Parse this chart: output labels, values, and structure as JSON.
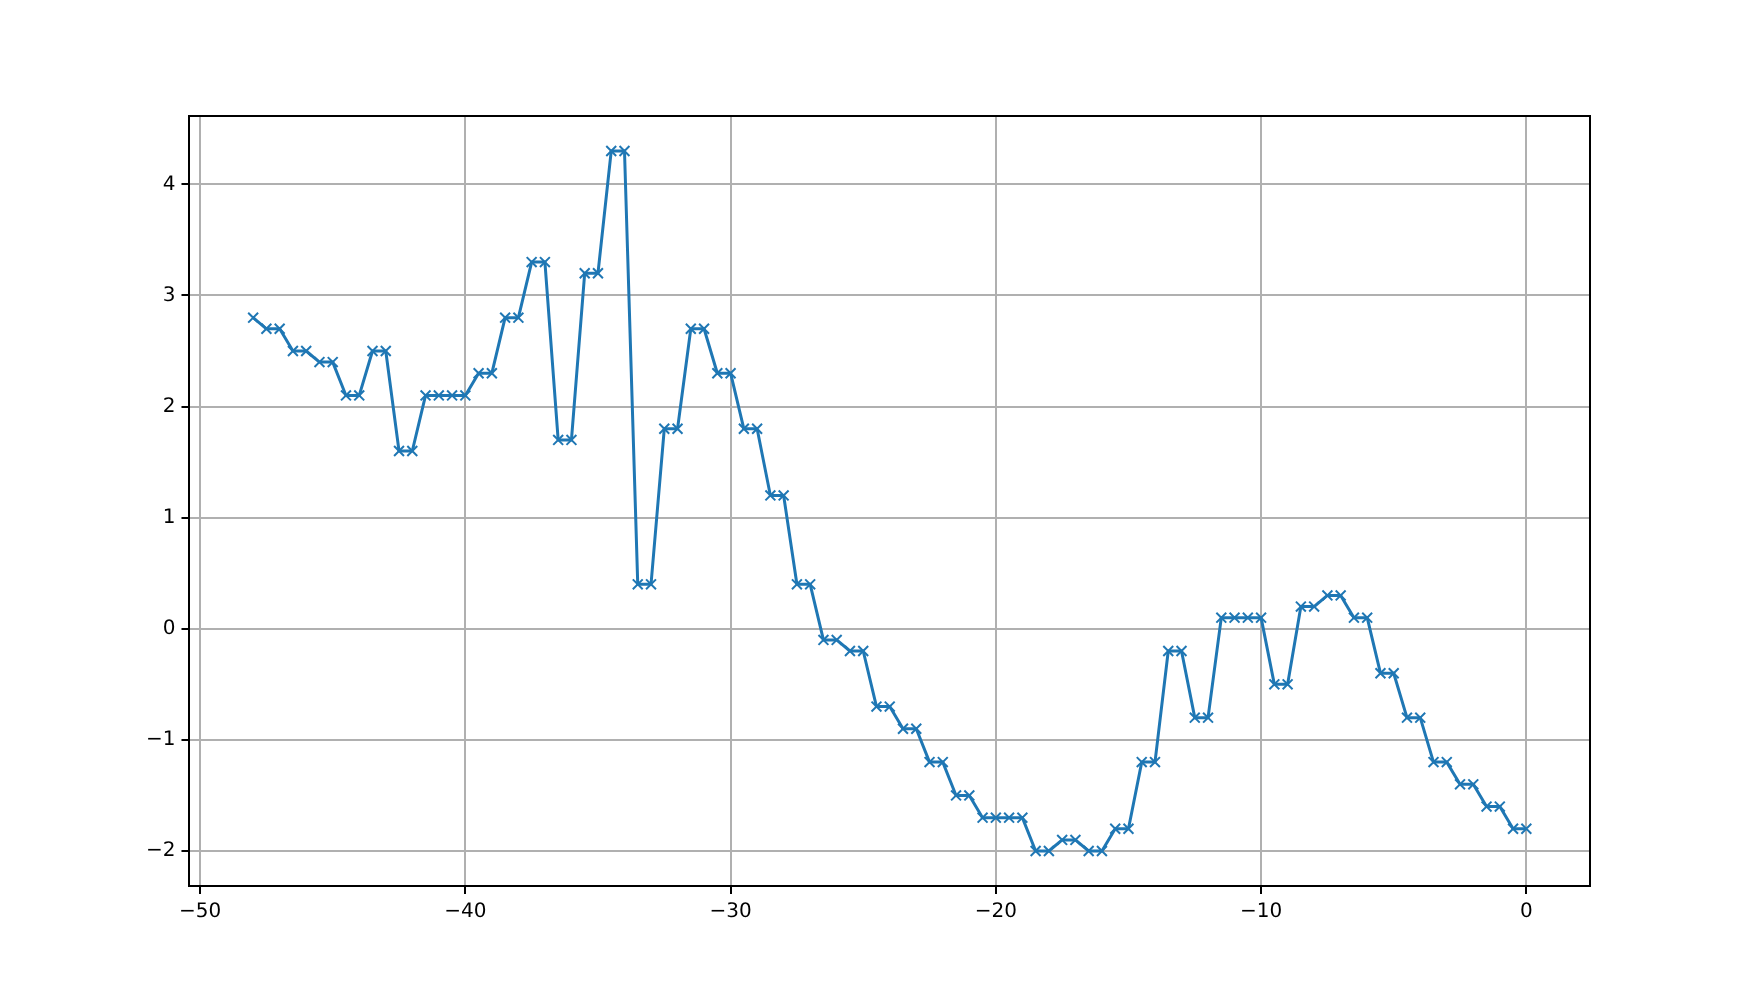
{
  "chart_data": {
    "type": "line",
    "marker": "cross",
    "grid": true,
    "legend": false,
    "xlim": [
      -50.4,
      2.4
    ],
    "ylim": [
      -2.315,
      4.615
    ],
    "xticks": [
      {
        "value": -50,
        "label": "−50"
      },
      {
        "value": -40,
        "label": "−40"
      },
      {
        "value": -30,
        "label": "−30"
      },
      {
        "value": -20,
        "label": "−20"
      },
      {
        "value": -10,
        "label": "−10"
      },
      0
    ],
    "yticks": [
      {
        "value": -2,
        "label": "−2"
      },
      {
        "value": -1,
        "label": "−1"
      },
      0,
      1,
      2,
      3,
      4
    ],
    "x": [
      -48,
      -47.5,
      -47,
      -46.5,
      -46,
      -45.5,
      -45,
      -44.5,
      -44,
      -43.5,
      -43,
      -42.5,
      -42,
      -41.5,
      -41,
      -40.5,
      -40,
      -39.5,
      -39,
      -38.5,
      -38,
      -37.5,
      -37,
      -36.5,
      -36,
      -35.5,
      -35,
      -34.5,
      -34,
      -33.5,
      -33,
      -32.5,
      -32,
      -31.5,
      -31,
      -30.5,
      -30,
      -29.5,
      -29,
      -28.5,
      -28,
      -27.5,
      -27,
      -26.5,
      -26,
      -25.5,
      -25,
      -24.5,
      -24,
      -23.5,
      -23,
      -22.5,
      -22,
      -21.5,
      -21,
      -20.5,
      -20,
      -19.5,
      -19,
      -18.5,
      -18,
      -17.5,
      -17,
      -16.5,
      -16,
      -15.5,
      -15,
      -14.5,
      -14,
      -13.5,
      -13,
      -12.5,
      -12,
      -11.5,
      -11,
      -10.5,
      -10,
      -9.5,
      -9,
      -8.5,
      -8,
      -7.5,
      -7,
      -6.5,
      -6,
      -5.5,
      -5,
      -4.5,
      -4,
      -3.5,
      -3,
      -2.5,
      -2,
      -1.5,
      -1,
      -0.5,
      0
    ],
    "series": [
      {
        "color": "#1f77b4",
        "values": [
          2.8,
          2.7,
          2.7,
          2.5,
          2.5,
          2.4,
          2.4,
          2.1,
          2.1,
          2.5,
          2.5,
          1.6,
          1.6,
          2.1,
          2.1,
          2.1,
          2.1,
          2.3,
          2.3,
          2.8,
          2.8,
          3.3,
          3.3,
          1.7,
          1.7,
          3.2,
          3.2,
          4.3,
          4.3,
          0.4,
          0.4,
          1.8,
          1.8,
          2.7,
          2.7,
          2.3,
          2.3,
          1.8,
          1.8,
          1.2,
          1.2,
          0.4,
          0.4,
          -0.1,
          -0.1,
          -0.2,
          -0.2,
          -0.7,
          -0.7,
          -0.9,
          -0.9,
          -1.2,
          -1.2,
          -1.5,
          -1.5,
          -1.7,
          -1.7,
          -1.7,
          -1.7,
          -2.0,
          -2.0,
          -1.9,
          -1.9,
          -2.0,
          -2.0,
          -1.8,
          -1.8,
          -1.2,
          -1.2,
          -0.2,
          -0.2,
          -0.8,
          -0.8,
          0.1,
          0.1,
          0.1,
          0.1,
          -0.5,
          -0.5,
          0.2,
          0.2,
          0.3,
          0.3,
          0.1,
          0.1,
          -0.4,
          -0.4,
          -0.8,
          -0.8,
          -1.2,
          -1.2,
          -1.4,
          -1.4,
          -1.6,
          -1.6,
          -1.8,
          -1.8
        ]
      }
    ]
  }
}
